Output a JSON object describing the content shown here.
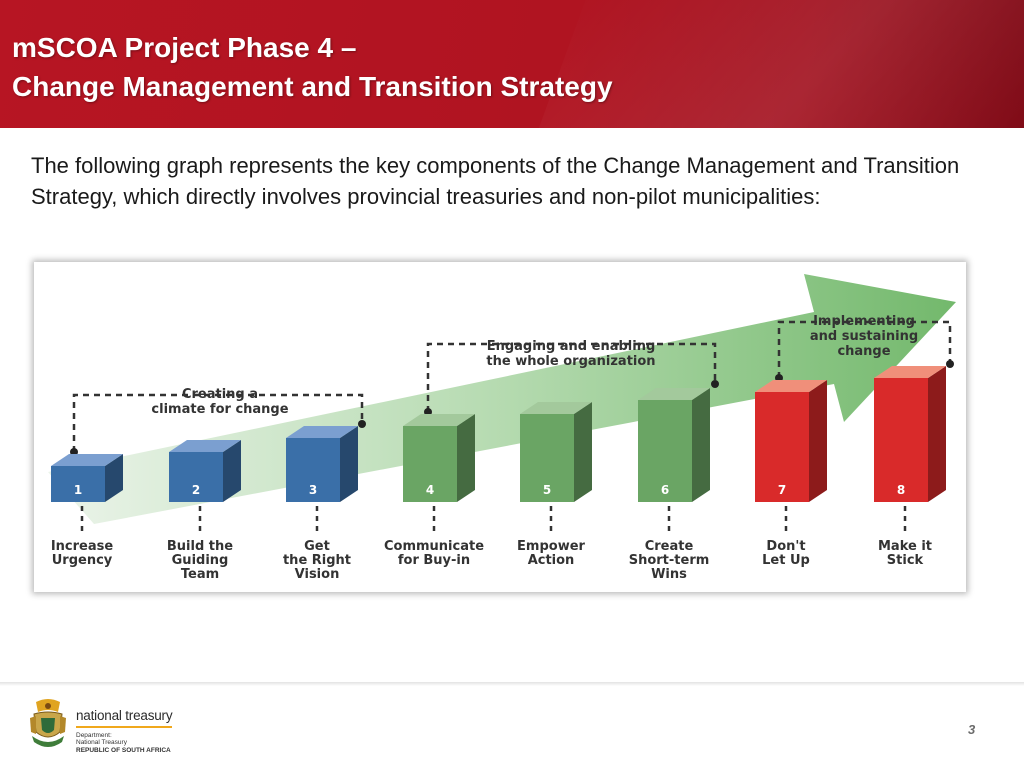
{
  "slide": {
    "title_line1": "mSCOA Project Phase 4 –",
    "title_line2": "Change Management and Transition Strategy",
    "intro": "The following graph represents the key components of the Change Management and Transition Strategy, which directly involves provincial treasuries and non-pilot municipalities:"
  },
  "diagram": {
    "groups": [
      {
        "label_lines": [
          "Creating a",
          "climate for change"
        ]
      },
      {
        "label_lines": [
          "Engaging and enabling",
          "the whole organization"
        ]
      },
      {
        "label_lines": [
          "Implementing",
          "and sustaining",
          "change"
        ]
      }
    ],
    "steps": [
      {
        "number": "1",
        "label_lines": [
          "Increase",
          "Urgency"
        ]
      },
      {
        "number": "2",
        "label_lines": [
          "Build the",
          "Guiding",
          "Team"
        ]
      },
      {
        "number": "3",
        "label_lines": [
          "Get",
          "the Right",
          "Vision"
        ]
      },
      {
        "number": "4",
        "label_lines": [
          "Communicate",
          "for Buy-in"
        ]
      },
      {
        "number": "5",
        "label_lines": [
          "Empower",
          "Action"
        ]
      },
      {
        "number": "6",
        "label_lines": [
          "Create",
          "Short-term",
          "Wins"
        ]
      },
      {
        "number": "7",
        "label_lines": [
          "Don't",
          "Let Up"
        ]
      },
      {
        "number": "8",
        "label_lines": [
          "Make it",
          "Stick"
        ]
      }
    ],
    "colors": {
      "blue": "#3a6fa8",
      "green": "#6aa564",
      "red": "#d92a2a",
      "arrow": "#7cbf74"
    }
  },
  "footer": {
    "org_name": "national treasury",
    "dept_line1": "Department:",
    "dept_line2": "National Treasury",
    "dept_line3": "REPUBLIC OF SOUTH AFRICA",
    "page_number": "3"
  }
}
